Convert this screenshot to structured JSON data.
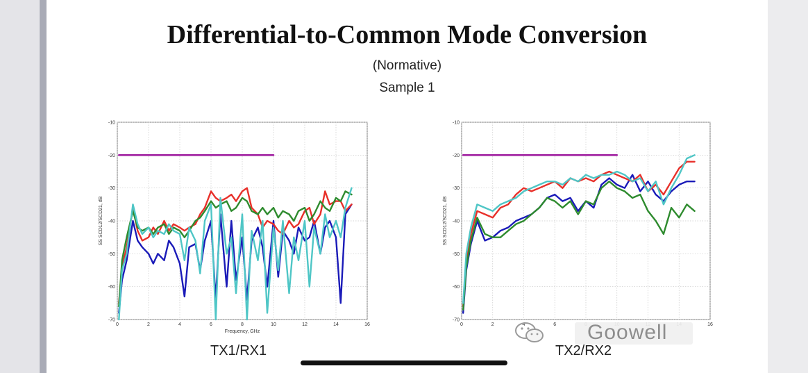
{
  "slide": {
    "title": "Differential-to-Common Mode Conversion",
    "subtitle": "(Normative)",
    "sample": "Sample 1"
  },
  "watermark": {
    "text": "Goowell",
    "icon": "wechat-icon"
  },
  "colors": {
    "limit": "#a020a0",
    "red": "#e8302a",
    "green": "#2e8b2e",
    "blue": "#1a1ab8",
    "cyan": "#4fc6c6"
  },
  "chart_data": [
    {
      "type": "line",
      "caption": "TX1/RX1",
      "xlabel": "Frequency, GHz",
      "ylabel": "SS SCD12/SCD21, dB",
      "xlim": [
        0,
        16
      ],
      "ylim": [
        -70,
        -10
      ],
      "xticks": [
        0,
        2,
        4,
        6,
        8,
        10,
        12,
        14,
        16
      ],
      "yticks": [
        -10,
        -20,
        -30,
        -40,
        -50,
        -60,
        -70
      ],
      "grid": true,
      "series": [
        {
          "color": "limit",
          "x": [
            0.1,
            10
          ],
          "y": [
            -20,
            -20
          ]
        },
        {
          "color": "blue",
          "x": [
            0.1,
            0.3,
            0.6,
            1,
            1.3,
            1.6,
            2,
            2.3,
            2.6,
            3,
            3.3,
            3.6,
            4,
            4.3,
            4.6,
            5,
            5.3,
            5.6,
            6,
            6.3,
            6.6,
            7,
            7.3,
            7.6,
            8,
            8.3,
            8.6,
            9,
            9.3,
            9.6,
            10,
            10.3,
            10.6,
            11,
            11.3,
            11.6,
            12,
            12.3,
            12.6,
            13,
            13.3,
            13.6,
            14,
            14.3,
            14.6,
            15
          ],
          "y": [
            -68,
            -58,
            -52,
            -40,
            -46,
            -48,
            -50,
            -53,
            -50,
            -52,
            -46,
            -48,
            -53,
            -63,
            -48,
            -47,
            -55,
            -46,
            -40,
            -64,
            -38,
            -60,
            -40,
            -58,
            -45,
            -64,
            -46,
            -42,
            -48,
            -60,
            -40,
            -57,
            -43,
            -46,
            -50,
            -42,
            -46,
            -45,
            -40,
            -50,
            -42,
            -40,
            -45,
            -65,
            -38,
            -35
          ]
        },
        {
          "color": "red",
          "x": [
            0.1,
            0.3,
            0.6,
            1,
            1.3,
            1.6,
            2,
            2.3,
            2.6,
            3,
            3.3,
            3.6,
            4,
            4.3,
            4.6,
            5,
            5.3,
            5.6,
            6,
            6.3,
            6.6,
            7,
            7.3,
            7.6,
            8,
            8.3,
            8.6,
            9,
            9.3,
            9.6,
            10,
            10.3,
            10.6,
            11,
            11.3,
            11.6,
            12,
            12.3,
            12.6,
            13,
            13.3,
            13.6,
            14,
            14.3,
            14.6,
            15
          ],
          "y": [
            -65,
            -54,
            -48,
            -36,
            -43,
            -46,
            -45,
            -42,
            -44,
            -40,
            -43,
            -41,
            -42,
            -43,
            -42,
            -41,
            -38,
            -36,
            -31,
            -33,
            -34,
            -33,
            -32,
            -34,
            -31,
            -30,
            -36,
            -38,
            -42,
            -40,
            -41,
            -43,
            -44,
            -40,
            -42,
            -41,
            -37,
            -36,
            -41,
            -38,
            -31,
            -35,
            -34,
            -34,
            -37,
            -35
          ]
        },
        {
          "color": "green",
          "x": [
            0.1,
            0.3,
            0.6,
            1,
            1.3,
            1.6,
            2,
            2.3,
            2.6,
            3,
            3.3,
            3.6,
            4,
            4.3,
            4.6,
            5,
            5.3,
            5.6,
            6,
            6.3,
            6.6,
            7,
            7.3,
            7.6,
            8,
            8.3,
            8.6,
            9,
            9.3,
            9.6,
            10,
            10.3,
            10.6,
            11,
            11.3,
            11.6,
            12,
            12.3,
            12.6,
            13,
            13.3,
            13.6,
            14,
            14.3,
            14.6,
            15
          ],
          "y": [
            -66,
            -52,
            -45,
            -37,
            -42,
            -43,
            -42,
            -44,
            -42,
            -41,
            -44,
            -42,
            -43,
            -45,
            -43,
            -40,
            -39,
            -37,
            -34,
            -36,
            -35,
            -34,
            -37,
            -36,
            -33,
            -34,
            -37,
            -38,
            -36,
            -38,
            -36,
            -39,
            -37,
            -38,
            -40,
            -37,
            -36,
            -40,
            -38,
            -34,
            -36,
            -37,
            -33,
            -34,
            -31,
            -32
          ]
        },
        {
          "color": "cyan",
          "x": [
            0.1,
            0.3,
            0.6,
            1,
            1.3,
            1.6,
            2,
            2.3,
            2.6,
            3,
            3.3,
            3.6,
            4,
            4.3,
            4.6,
            5,
            5.3,
            5.6,
            6,
            6.3,
            6.6,
            7,
            7.3,
            7.6,
            8,
            8.3,
            8.6,
            9,
            9.3,
            9.6,
            10,
            10.3,
            10.6,
            11,
            11.3,
            11.6,
            12,
            12.3,
            12.6,
            13,
            13.3,
            13.6,
            14,
            14.3,
            14.6,
            15
          ],
          "y": [
            -70,
            -55,
            -50,
            -35,
            -41,
            -44,
            -42,
            -45,
            -43,
            -44,
            -41,
            -43,
            -44,
            -52,
            -42,
            -46,
            -56,
            -40,
            -35,
            -70,
            -33,
            -50,
            -45,
            -62,
            -38,
            -70,
            -43,
            -52,
            -40,
            -68,
            -42,
            -55,
            -40,
            -62,
            -45,
            -52,
            -40,
            -60,
            -42,
            -50,
            -38,
            -45,
            -40,
            -45,
            -36,
            -30
          ]
        }
      ]
    },
    {
      "type": "line",
      "caption": "TX2/RX2",
      "xlabel": "",
      "ylabel": "SS SCD12/SCD21, dB",
      "xlim": [
        0,
        16
      ],
      "ylim": [
        -70,
        -10
      ],
      "xticks": [
        0,
        2,
        4,
        6,
        8,
        10,
        12,
        14,
        16
      ],
      "yticks": [
        -10,
        -20,
        -30,
        -40,
        -50,
        -60,
        -70
      ],
      "grid": true,
      "series": [
        {
          "color": "limit",
          "x": [
            0.1,
            10
          ],
          "y": [
            -20,
            -20
          ]
        },
        {
          "color": "blue",
          "x": [
            0.1,
            0.3,
            0.6,
            1,
            1.5,
            2,
            2.5,
            3,
            3.5,
            4,
            4.5,
            5,
            5.5,
            6,
            6.5,
            7,
            7.5,
            8,
            8.5,
            9,
            9.5,
            10,
            10.5,
            11,
            11.5,
            12,
            12.5,
            13,
            13.5,
            14,
            14.5,
            15
          ],
          "y": [
            -68,
            -55,
            -47,
            -40,
            -46,
            -45,
            -43,
            -42,
            -40,
            -39,
            -38,
            -36,
            -33,
            -32,
            -34,
            -33,
            -37,
            -34,
            -36,
            -29,
            -27,
            -29,
            -30,
            -26,
            -31,
            -28,
            -32,
            -34,
            -31,
            -29,
            -28,
            -28
          ]
        },
        {
          "color": "red",
          "x": [
            0.1,
            0.3,
            0.6,
            1,
            1.5,
            2,
            2.5,
            3,
            3.5,
            4,
            4.5,
            5,
            5.5,
            6,
            6.5,
            7,
            7.5,
            8,
            8.5,
            9,
            9.5,
            10,
            10.5,
            11,
            11.5,
            12,
            12.5,
            13,
            13.5,
            14,
            14.5,
            15
          ],
          "y": [
            -66,
            -52,
            -44,
            -37,
            -38,
            -39,
            -36,
            -35,
            -32,
            -30,
            -31,
            -30,
            -29,
            -28,
            -30,
            -27,
            -28,
            -27,
            -28,
            -26,
            -25,
            -26,
            -27,
            -28,
            -26,
            -31,
            -29,
            -32,
            -28,
            -24,
            -22,
            -22
          ]
        },
        {
          "color": "green",
          "x": [
            0.1,
            0.3,
            0.6,
            1,
            1.5,
            2,
            2.5,
            3,
            3.5,
            4,
            4.5,
            5,
            5.5,
            6,
            6.5,
            7,
            7.5,
            8,
            8.5,
            9,
            9.5,
            10,
            10.5,
            11,
            11.5,
            12,
            12.5,
            13,
            13.5,
            14,
            14.5,
            15
          ],
          "y": [
            -67,
            -54,
            -46,
            -39,
            -44,
            -45,
            -45,
            -43,
            -41,
            -40,
            -38,
            -36,
            -33,
            -34,
            -36,
            -34,
            -38,
            -34,
            -35,
            -30,
            -28,
            -30,
            -31,
            -33,
            -32,
            -37,
            -40,
            -44,
            -36,
            -39,
            -35,
            -37
          ]
        },
        {
          "color": "cyan",
          "x": [
            0.1,
            0.3,
            0.6,
            1,
            1.5,
            2,
            2.5,
            3,
            3.5,
            4,
            4.5,
            5,
            5.5,
            6,
            6.5,
            7,
            7.5,
            8,
            8.5,
            9,
            9.5,
            10,
            10.5,
            11,
            11.5,
            12,
            12.5,
            13,
            13.5,
            14,
            14.5,
            15
          ],
          "y": [
            -65,
            -50,
            -42,
            -35,
            -36,
            -37,
            -35,
            -34,
            -33,
            -31,
            -30,
            -29,
            -28,
            -28,
            -29,
            -27,
            -28,
            -26,
            -27,
            -26,
            -26,
            -25,
            -26,
            -28,
            -27,
            -31,
            -28,
            -35,
            -30,
            -26,
            -21,
            -20
          ]
        }
      ]
    }
  ]
}
